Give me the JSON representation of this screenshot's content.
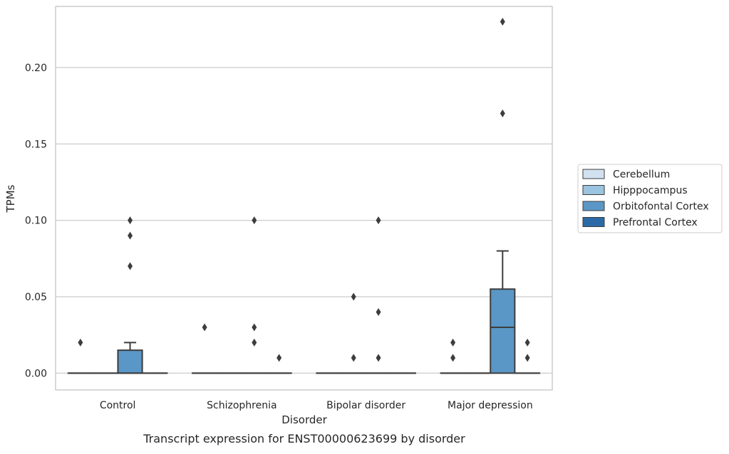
{
  "chart_data": {
    "type": "box",
    "caption": "Transcript expression for ENST00000623699 by disorder",
    "xlabel": "Disorder",
    "ylabel": "TPMs",
    "ylim": [
      -0.011,
      0.24
    ],
    "yticks": [
      0.0,
      0.05,
      0.1,
      0.15,
      0.2
    ],
    "ytick_labels": [
      "0.00",
      "0.05",
      "0.10",
      "0.15",
      "0.20"
    ],
    "grid": "horizontal",
    "legend_position": "right",
    "categories": [
      "Control",
      "Schizophrenia",
      "Bipolar disorder",
      "Major depression"
    ],
    "series": [
      {
        "name": "Cerebellum",
        "color": "#d1e1f0",
        "boxes": [
          {
            "q1": 0.0,
            "median": 0.0,
            "q3": 0.0,
            "whisker_low": 0.0,
            "whisker_high": 0.0,
            "outliers": [
              0.02
            ]
          },
          {
            "q1": 0.0,
            "median": 0.0,
            "q3": 0.0,
            "whisker_low": 0.0,
            "whisker_high": 0.0,
            "outliers": [
              0.03
            ]
          },
          {
            "q1": 0.0,
            "median": 0.0,
            "q3": 0.0,
            "whisker_low": 0.0,
            "whisker_high": 0.0,
            "outliers": []
          },
          {
            "q1": 0.0,
            "median": 0.0,
            "q3": 0.0,
            "whisker_low": 0.0,
            "whisker_high": 0.0,
            "outliers": [
              0.01,
              0.02
            ]
          }
        ]
      },
      {
        "name": "Hipppocampus",
        "color": "#9ac4df",
        "boxes": [
          {
            "q1": 0.0,
            "median": 0.0,
            "q3": 0.0,
            "whisker_low": 0.0,
            "whisker_high": 0.0,
            "outliers": []
          },
          {
            "q1": 0.0,
            "median": 0.0,
            "q3": 0.0,
            "whisker_low": 0.0,
            "whisker_high": 0.0,
            "outliers": []
          },
          {
            "q1": 0.0,
            "median": 0.0,
            "q3": 0.0,
            "whisker_low": 0.0,
            "whisker_high": 0.0,
            "outliers": [
              0.01,
              0.05
            ]
          },
          {
            "q1": 0.0,
            "median": 0.0,
            "q3": 0.0,
            "whisker_low": 0.0,
            "whisker_high": 0.0,
            "outliers": []
          }
        ]
      },
      {
        "name": "Orbitofontal Cortex",
        "color": "#5a97c6",
        "boxes": [
          {
            "q1": 0.0,
            "median": 0.0,
            "q3": 0.015,
            "whisker_low": 0.0,
            "whisker_high": 0.02,
            "outliers": [
              0.07,
              0.09,
              0.1
            ]
          },
          {
            "q1": 0.0,
            "median": 0.0,
            "q3": 0.0,
            "whisker_low": 0.0,
            "whisker_high": 0.0,
            "outliers": [
              0.02,
              0.03,
              0.1
            ]
          },
          {
            "q1": 0.0,
            "median": 0.0,
            "q3": 0.0,
            "whisker_low": 0.0,
            "whisker_high": 0.0,
            "outliers": [
              0.01,
              0.04,
              0.1
            ]
          },
          {
            "q1": 0.0,
            "median": 0.03,
            "q3": 0.055,
            "whisker_low": 0.0,
            "whisker_high": 0.08,
            "outliers": [
              0.17,
              0.23
            ]
          }
        ]
      },
      {
        "name": "Prefrontal Cortex",
        "color": "#2b6aa6",
        "boxes": [
          {
            "q1": 0.0,
            "median": 0.0,
            "q3": 0.0,
            "whisker_low": 0.0,
            "whisker_high": 0.0,
            "outliers": []
          },
          {
            "q1": 0.0,
            "median": 0.0,
            "q3": 0.0,
            "whisker_low": 0.0,
            "whisker_high": 0.0,
            "outliers": [
              0.01
            ]
          },
          {
            "q1": 0.0,
            "median": 0.0,
            "q3": 0.0,
            "whisker_low": 0.0,
            "whisker_high": 0.0,
            "outliers": []
          },
          {
            "q1": 0.0,
            "median": 0.0,
            "q3": 0.0,
            "whisker_low": 0.0,
            "whisker_high": 0.0,
            "outliers": [
              0.01,
              0.02
            ]
          }
        ]
      }
    ]
  }
}
